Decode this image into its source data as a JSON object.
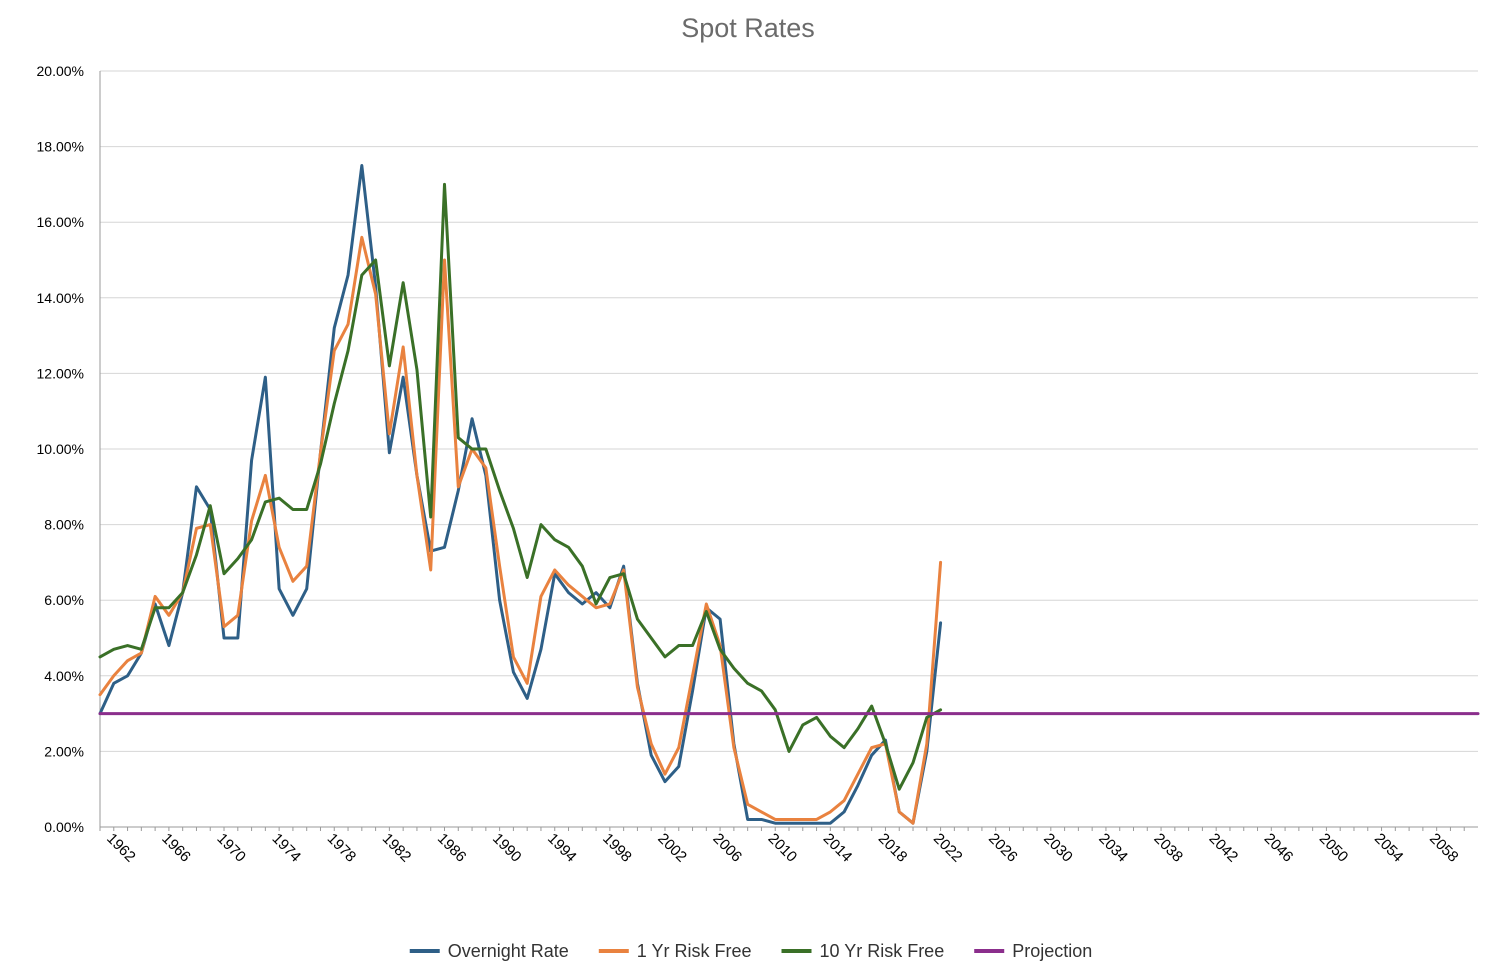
{
  "chart_data": {
    "type": "line",
    "title": "Spot Rates",
    "xlabel": "",
    "ylabel": "",
    "xlim": [
      1961,
      2061
    ],
    "ylim": [
      0,
      20
    ],
    "x_tick_labels": [
      "1962",
      "1966",
      "1970",
      "1974",
      "1978",
      "1982",
      "1986",
      "1990",
      "1994",
      "1998",
      "2002",
      "2006",
      "2010",
      "2014",
      "2018",
      "2022",
      "2026",
      "2030",
      "2034",
      "2038",
      "2042",
      "2046",
      "2050",
      "2054",
      "2058"
    ],
    "y_tick_labels": [
      "0.00%",
      "2.00%",
      "4.00%",
      "6.00%",
      "8.00%",
      "10.00%",
      "12.00%",
      "14.00%",
      "16.00%",
      "18.00%",
      "20.00%"
    ],
    "y_tick_values": [
      0,
      2,
      4,
      6,
      8,
      10,
      12,
      14,
      16,
      18,
      20
    ],
    "grid": "horizontal",
    "legend_position": "bottom",
    "series": [
      {
        "name": "Overnight Rate",
        "color": "#2e5f87",
        "x": [
          1961,
          1962,
          1963,
          1964,
          1965,
          1966,
          1967,
          1968,
          1969,
          1970,
          1971,
          1972,
          1973,
          1974,
          1975,
          1976,
          1977,
          1978,
          1979,
          1980,
          1981,
          1982,
          1983,
          1984,
          1985,
          1986,
          1987,
          1988,
          1989,
          1990,
          1991,
          1992,
          1993,
          1994,
          1995,
          1996,
          1997,
          1998,
          1999,
          2000,
          2001,
          2002,
          2003,
          2004,
          2005,
          2006,
          2007,
          2008,
          2009,
          2010,
          2011,
          2012,
          2013,
          2014,
          2015,
          2016,
          2017,
          2018,
          2019,
          2020,
          2021,
          2022
        ],
        "values": [
          3.0,
          3.8,
          4.0,
          4.6,
          5.9,
          4.8,
          6.2,
          9.0,
          8.4,
          5.0,
          5.0,
          9.7,
          11.9,
          6.3,
          5.6,
          6.3,
          9.9,
          13.2,
          14.6,
          17.5,
          14.3,
          9.9,
          11.9,
          9.3,
          7.3,
          7.4,
          8.9,
          10.8,
          9.3,
          6.0,
          4.1,
          3.4,
          4.7,
          6.7,
          6.2,
          5.9,
          6.2,
          5.8,
          6.9,
          3.8,
          1.9,
          1.2,
          1.6,
          3.6,
          5.8,
          5.5,
          2.2,
          0.2,
          0.2,
          0.1,
          0.1,
          0.1,
          0.1,
          0.1,
          0.4,
          1.1,
          1.9,
          2.3,
          0.4,
          0.1,
          2.0,
          5.4
        ]
      },
      {
        "name": "1 Yr Risk Free",
        "color": "#e9823f",
        "x": [
          1961,
          1962,
          1963,
          1964,
          1965,
          1966,
          1967,
          1968,
          1969,
          1970,
          1971,
          1972,
          1973,
          1974,
          1975,
          1976,
          1977,
          1978,
          1979,
          1980,
          1981,
          1982,
          1983,
          1984,
          1985,
          1986,
          1987,
          1988,
          1989,
          1990,
          1991,
          1992,
          1993,
          1994,
          1995,
          1996,
          1997,
          1998,
          1999,
          2000,
          2001,
          2002,
          2003,
          2004,
          2005,
          2006,
          2007,
          2008,
          2009,
          2010,
          2011,
          2012,
          2013,
          2014,
          2015,
          2016,
          2017,
          2018,
          2019,
          2020,
          2021,
          2022
        ],
        "values": [
          3.5,
          4.0,
          4.4,
          4.6,
          6.1,
          5.6,
          6.2,
          7.9,
          8.0,
          5.3,
          5.6,
          8.1,
          9.3,
          7.4,
          6.5,
          6.9,
          9.9,
          12.6,
          13.3,
          15.6,
          14.1,
          10.4,
          12.7,
          9.3,
          6.8,
          15.0,
          9.0,
          10.0,
          9.5,
          6.9,
          4.5,
          3.8,
          6.1,
          6.8,
          6.4,
          6.1,
          5.8,
          5.9,
          6.8,
          3.7,
          2.2,
          1.4,
          2.1,
          4.0,
          5.9,
          4.8,
          2.1,
          0.6,
          0.4,
          0.2,
          0.2,
          0.2,
          0.2,
          0.4,
          0.7,
          1.4,
          2.1,
          2.2,
          0.4,
          0.1,
          2.2,
          7.0
        ]
      },
      {
        "name": "10 Yr Risk Free",
        "color": "#3a7027",
        "x": [
          1961,
          1962,
          1963,
          1964,
          1965,
          1966,
          1967,
          1968,
          1969,
          1970,
          1971,
          1972,
          1973,
          1974,
          1975,
          1976,
          1977,
          1978,
          1979,
          1980,
          1981,
          1982,
          1983,
          1984,
          1985,
          1986,
          1987,
          1988,
          1989,
          1990,
          1991,
          1992,
          1993,
          1994,
          1995,
          1996,
          1997,
          1998,
          1999,
          2000,
          2001,
          2002,
          2003,
          2004,
          2005,
          2006,
          2007,
          2008,
          2009,
          2010,
          2011,
          2012,
          2013,
          2014,
          2015,
          2016,
          2017,
          2018,
          2019,
          2020,
          2021,
          2022
        ],
        "values": [
          4.5,
          4.7,
          4.8,
          4.7,
          5.8,
          5.8,
          6.2,
          7.2,
          8.5,
          6.7,
          7.1,
          7.6,
          8.6,
          8.7,
          8.4,
          8.4,
          9.6,
          11.2,
          12.6,
          14.6,
          15.0,
          12.2,
          14.4,
          12.1,
          8.2,
          17.0,
          10.3,
          10.0,
          10.0,
          8.9,
          7.9,
          6.6,
          8.0,
          7.6,
          7.4,
          6.9,
          5.9,
          6.6,
          6.7,
          5.5,
          5.0,
          4.5,
          4.8,
          4.8,
          5.7,
          4.7,
          4.2,
          3.8,
          3.6,
          3.1,
          2.0,
          2.7,
          2.9,
          2.4,
          2.1,
          2.6,
          3.2,
          2.2,
          1.0,
          1.7,
          2.9,
          3.1
        ]
      },
      {
        "name": "Projection",
        "color": "#8b2e8c",
        "x": [
          1961,
          2061
        ],
        "values": [
          3.0,
          3.0
        ]
      }
    ]
  }
}
